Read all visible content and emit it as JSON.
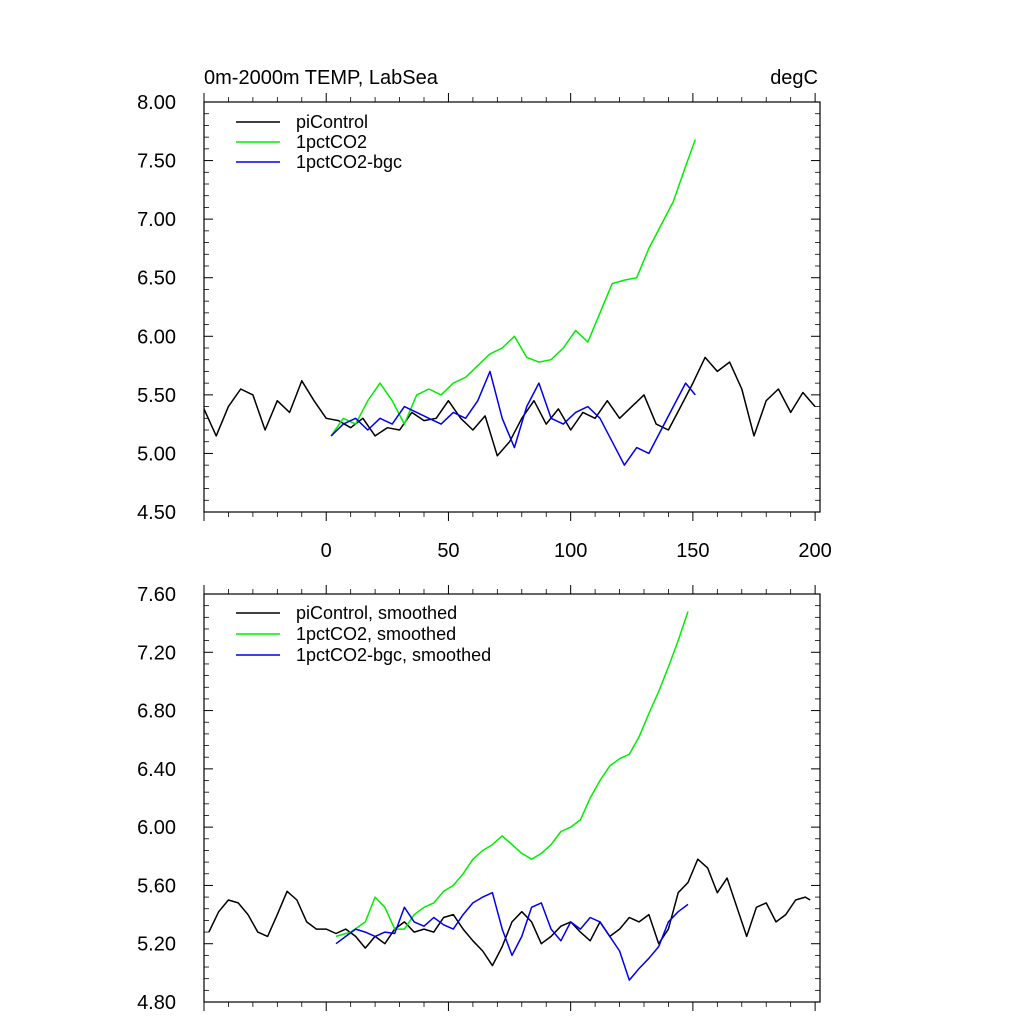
{
  "chart_data": [
    {
      "type": "line",
      "title": "0m-2000m TEMP, LabSea",
      "units": "degC",
      "xlabel": "",
      "ylabel": "",
      "xlim": [
        -50,
        202
      ],
      "ylim": [
        4.5,
        8.0
      ],
      "yticks": [
        4.5,
        5.0,
        5.5,
        6.0,
        6.5,
        7.0,
        7.5,
        8.0
      ],
      "ytick_labels": [
        "4.50",
        "5.00",
        "5.50",
        "6.00",
        "6.50",
        "7.00",
        "7.50",
        "8.00"
      ],
      "xticks": [
        0,
        50,
        100,
        150,
        200
      ],
      "xtick_labels": [
        "0",
        "50",
        "100",
        "150",
        "200"
      ],
      "legend_position": "top-left",
      "series": [
        {
          "name": "piControl",
          "color": "#000000",
          "x": [
            -50,
            -45,
            -40,
            -35,
            -30,
            -25,
            -20,
            -15,
            -10,
            -5,
            0,
            5,
            10,
            15,
            20,
            25,
            30,
            35,
            40,
            45,
            50,
            55,
            60,
            65,
            70,
            75,
            80,
            85,
            90,
            95,
            100,
            105,
            110,
            115,
            120,
            125,
            130,
            135,
            140,
            145,
            150,
            155,
            160,
            165,
            170,
            175,
            180,
            185,
            190,
            195,
            200
          ],
          "y": [
            5.38,
            5.15,
            5.4,
            5.55,
            5.5,
            5.2,
            5.45,
            5.35,
            5.62,
            5.45,
            5.3,
            5.28,
            5.22,
            5.3,
            5.15,
            5.22,
            5.2,
            5.35,
            5.28,
            5.3,
            5.45,
            5.3,
            5.2,
            5.32,
            4.98,
            5.1,
            5.3,
            5.45,
            5.25,
            5.38,
            5.2,
            5.35,
            5.3,
            5.45,
            5.3,
            5.4,
            5.5,
            5.25,
            5.2,
            5.4,
            5.6,
            5.82,
            5.7,
            5.78,
            5.55,
            5.15,
            5.45,
            5.55,
            5.35,
            5.52,
            5.4
          ]
        },
        {
          "name": "1pctCO2",
          "color": "#00ee00",
          "x": [
            2,
            7,
            12,
            17,
            22,
            27,
            32,
            37,
            42,
            47,
            52,
            57,
            62,
            67,
            72,
            77,
            82,
            87,
            92,
            97,
            102,
            107,
            112,
            117,
            122,
            127,
            132,
            137,
            142,
            147,
            151
          ],
          "y": [
            5.15,
            5.3,
            5.25,
            5.45,
            5.6,
            5.45,
            5.25,
            5.5,
            5.55,
            5.5,
            5.6,
            5.65,
            5.75,
            5.85,
            5.9,
            6.0,
            5.82,
            5.78,
            5.8,
            5.9,
            6.05,
            5.95,
            6.2,
            6.45,
            6.48,
            6.5,
            6.75,
            6.95,
            7.15,
            7.45,
            7.68
          ]
        },
        {
          "name": "1pctCO2-bgc",
          "color": "#0000ee",
          "x": [
            2,
            7,
            12,
            17,
            22,
            27,
            32,
            37,
            42,
            47,
            52,
            57,
            62,
            67,
            72,
            77,
            82,
            87,
            92,
            97,
            102,
            107,
            112,
            117,
            122,
            127,
            132,
            137,
            142,
            147,
            151
          ],
          "y": [
            5.15,
            5.25,
            5.3,
            5.2,
            5.3,
            5.25,
            5.4,
            5.35,
            5.3,
            5.25,
            5.35,
            5.3,
            5.45,
            5.7,
            5.3,
            5.05,
            5.4,
            5.6,
            5.3,
            5.25,
            5.35,
            5.4,
            5.3,
            5.1,
            4.9,
            5.05,
            5.0,
            5.2,
            5.4,
            5.6,
            5.5
          ]
        }
      ]
    },
    {
      "type": "line",
      "title": "",
      "units": "",
      "xlabel": "",
      "ylabel": "",
      "xlim": [
        -50,
        202
      ],
      "ylim": [
        4.8,
        7.6
      ],
      "yticks": [
        4.8,
        5.2,
        5.6,
        6.0,
        6.4,
        6.8,
        7.2,
        7.6
      ],
      "ytick_labels": [
        "4.80",
        "5.20",
        "5.60",
        "6.00",
        "6.40",
        "6.80",
        "7.20",
        "7.60"
      ],
      "xticks": [
        0,
        50,
        100,
        150,
        200
      ],
      "xtick_labels": [],
      "legend_position": "top-left",
      "series": [
        {
          "name": "piControl, smoothed",
          "color": "#000000",
          "x": [
            -48,
            -44,
            -40,
            -36,
            -32,
            -28,
            -24,
            -20,
            -16,
            -12,
            -8,
            -4,
            0,
            4,
            8,
            12,
            16,
            20,
            24,
            28,
            32,
            36,
            40,
            44,
            48,
            52,
            56,
            60,
            64,
            68,
            72,
            76,
            80,
            84,
            88,
            92,
            96,
            100,
            104,
            108,
            112,
            116,
            120,
            124,
            128,
            132,
            136,
            140,
            144,
            148,
            152,
            156,
            160,
            164,
            168,
            172,
            176,
            180,
            184,
            188,
            192,
            196,
            198
          ],
          "y": [
            5.28,
            5.42,
            5.5,
            5.48,
            5.4,
            5.28,
            5.25,
            5.4,
            5.56,
            5.5,
            5.35,
            5.3,
            5.3,
            5.27,
            5.3,
            5.25,
            5.17,
            5.25,
            5.2,
            5.3,
            5.35,
            5.28,
            5.3,
            5.28,
            5.38,
            5.4,
            5.3,
            5.22,
            5.15,
            5.05,
            5.18,
            5.35,
            5.42,
            5.35,
            5.2,
            5.25,
            5.32,
            5.35,
            5.28,
            5.22,
            5.35,
            5.25,
            5.3,
            5.38,
            5.35,
            5.4,
            5.2,
            5.3,
            5.55,
            5.62,
            5.78,
            5.72,
            5.55,
            5.65,
            5.45,
            5.25,
            5.45,
            5.48,
            5.35,
            5.4,
            5.5,
            5.52,
            5.5
          ]
        },
        {
          "name": "1pctCO2, smoothed",
          "color": "#00ee00",
          "x": [
            4,
            10,
            16,
            20,
            24,
            28,
            32,
            36,
            40,
            44,
            48,
            52,
            56,
            60,
            64,
            68,
            72,
            76,
            80,
            84,
            88,
            92,
            96,
            100,
            104,
            108,
            112,
            116,
            120,
            124,
            128,
            132,
            136,
            140,
            144,
            148
          ],
          "y": [
            5.25,
            5.28,
            5.35,
            5.52,
            5.45,
            5.3,
            5.3,
            5.4,
            5.45,
            5.48,
            5.56,
            5.6,
            5.68,
            5.78,
            5.84,
            5.88,
            5.94,
            5.88,
            5.82,
            5.78,
            5.82,
            5.88,
            5.97,
            6.0,
            6.05,
            6.2,
            6.32,
            6.42,
            6.47,
            6.5,
            6.62,
            6.78,
            6.93,
            7.1,
            7.28,
            7.48
          ]
        },
        {
          "name": "1pctCO2-bgc, smoothed",
          "color": "#0000ee",
          "x": [
            4,
            8,
            12,
            16,
            20,
            24,
            28,
            32,
            36,
            40,
            44,
            48,
            52,
            56,
            60,
            64,
            68,
            72,
            76,
            80,
            84,
            88,
            92,
            96,
            100,
            104,
            108,
            112,
            116,
            120,
            124,
            128,
            132,
            136,
            140,
            144,
            148
          ],
          "y": [
            5.2,
            5.25,
            5.3,
            5.28,
            5.25,
            5.28,
            5.27,
            5.45,
            5.35,
            5.32,
            5.38,
            5.33,
            5.3,
            5.4,
            5.48,
            5.52,
            5.55,
            5.3,
            5.12,
            5.25,
            5.45,
            5.48,
            5.3,
            5.22,
            5.35,
            5.3,
            5.38,
            5.35,
            5.25,
            5.15,
            4.95,
            5.03,
            5.1,
            5.18,
            5.35,
            5.42,
            5.47
          ]
        }
      ]
    }
  ]
}
